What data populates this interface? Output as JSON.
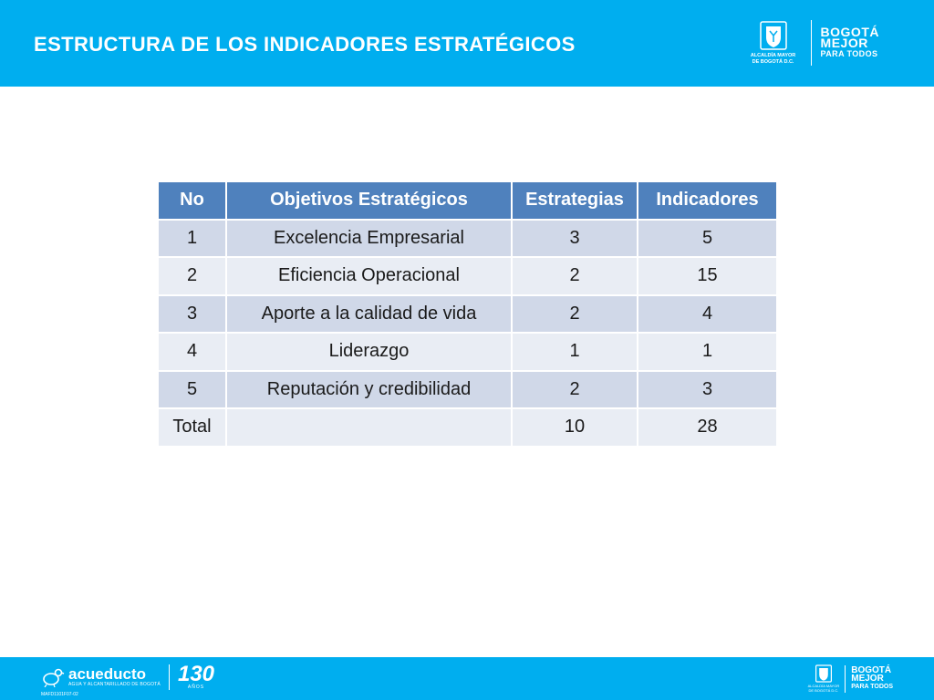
{
  "header": {
    "title": "ESTRUCTURA DE LOS INDICADORES ESTRATÉGICOS",
    "alcaldia_label": "ALCALDÍA MAYOR\nDE BOGOTÁ D.C.",
    "bogota_line1": "BOGOTÁ",
    "bogota_line2": "MEJOR",
    "bogota_line3": "PARA TODOS"
  },
  "table": {
    "headers": [
      "No",
      "Objetivos Estratégicos",
      "Estrategias",
      "Indicadores"
    ],
    "rows": [
      [
        "1",
        "Excelencia Empresarial",
        "3",
        "5"
      ],
      [
        "2",
        "Eficiencia Operacional",
        "2",
        "15"
      ],
      [
        "3",
        "Aporte a la calidad de vida",
        "2",
        "4"
      ],
      [
        "4",
        "Liderazgo",
        "1",
        "1"
      ],
      [
        "5",
        "Reputación y credibilidad",
        "2",
        "3"
      ],
      [
        "Total",
        "",
        "10",
        "28"
      ]
    ]
  },
  "footer": {
    "acueducto_name": "acueducto",
    "acueducto_sub": "AGUA Y ALCANTARILLADO DE BOGOTÁ",
    "anos_number": "130",
    "anos_label": "AÑOS",
    "doc_code": "MAFD1101F07-02",
    "alcaldia_label": "ALCALDÍA MAYOR\nDE BOGOTÁ D.C.",
    "bogota_line1": "BOGOTÁ",
    "bogota_line2": "MEJOR",
    "bogota_line3": "PARA TODOS"
  },
  "colors": {
    "header_bg": "#00aeef",
    "table_header_bg": "#4f81bd",
    "row_odd_bg": "#d0d8e8",
    "row_even_bg": "#e9edf4"
  }
}
